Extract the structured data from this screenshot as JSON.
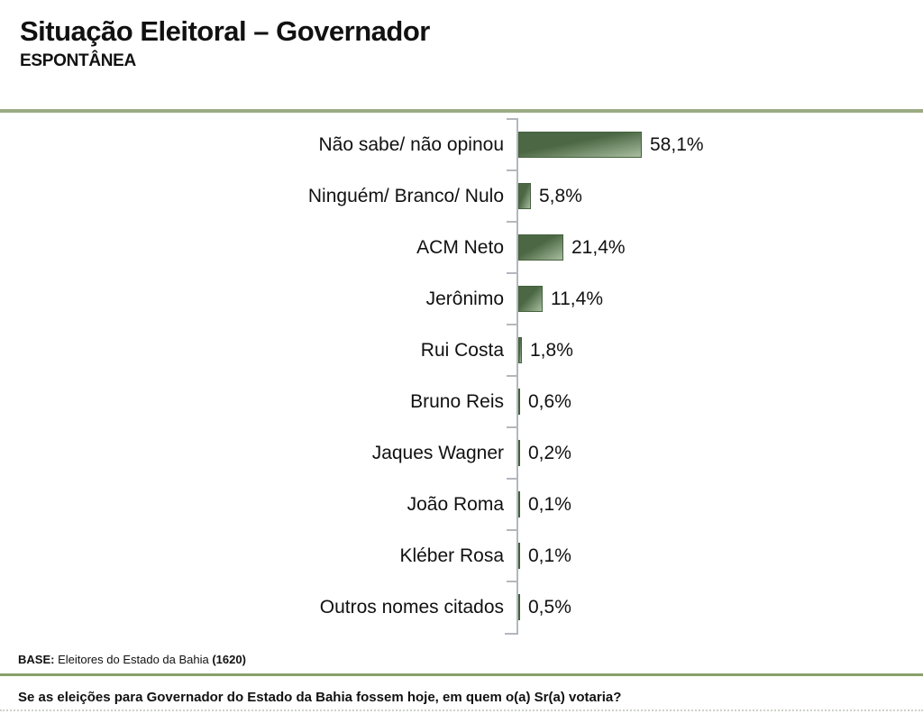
{
  "header": {
    "title": "Situação Eleitoral – Governador",
    "subtitle": "ESPONTÂNEA"
  },
  "chart_data": {
    "type": "bar",
    "orientation": "horizontal",
    "title": "Situação Eleitoral – Governador (Espontânea)",
    "categories": [
      "Não sabe/ não opinou",
      "Ninguém/ Branco/ Nulo",
      "ACM Neto",
      "Jerônimo",
      "Rui Costa",
      "Bruno Reis",
      "Jaques Wagner",
      "João Roma",
      "Kléber Rosa",
      "Outros nomes citados"
    ],
    "values": [
      58.1,
      5.8,
      21.4,
      11.4,
      1.8,
      0.6,
      0.2,
      0.1,
      0.1,
      0.5
    ],
    "value_labels": [
      "58,1%",
      "5,8%",
      "21,4%",
      "11,4%",
      "1,8%",
      "0,6%",
      "0,2%",
      "0,1%",
      "0,1%",
      "0,5%"
    ],
    "xlabel": "",
    "ylabel": "",
    "xlim": [
      0,
      65
    ],
    "grid": false,
    "legend": false
  },
  "footer": {
    "base_label": "BASE:",
    "base_text": " Eleitores do Estado da Bahia ",
    "base_count": "(1620)",
    "question": "Se as eleições para Governador do Estado da Bahia fossem hoje, em quem o(a) Sr(a) votaria?"
  },
  "colors": {
    "divider_green": "#9cab83",
    "footer_line_green": "#87a06a",
    "axis_gray": "#b3b8bd",
    "bar_dark": "#4b6743",
    "bar_light": "#a9bea0",
    "bar_border": "#45613e",
    "dotted_line": "#ccd3c5"
  }
}
